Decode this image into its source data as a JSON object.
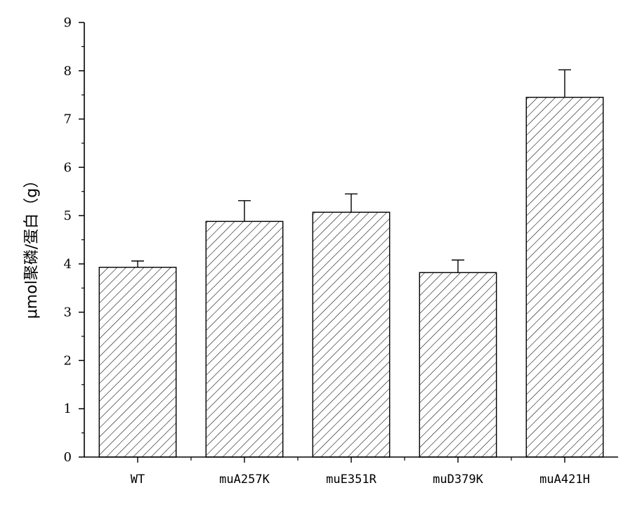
{
  "chart_data": {
    "type": "bar",
    "categories": [
      "WT",
      "muA257K",
      "muE351R",
      "muD379K",
      "muA421H"
    ],
    "values": [
      3.93,
      4.88,
      5.07,
      3.82,
      7.45
    ],
    "errors": [
      0.13,
      0.43,
      0.38,
      0.26,
      0.57
    ],
    "ylabel": "μmol聚磷/蛋白（g）",
    "xlabel": "",
    "title": "",
    "ylim": [
      0,
      9
    ],
    "yticks": [
      0,
      1,
      2,
      3,
      4,
      5,
      6,
      7,
      8,
      9
    ],
    "grid": false,
    "legend": "none",
    "bar_fill": "hatched"
  },
  "colors": {
    "bar_edge": "#000000",
    "hatch": "#000000",
    "background": "#ffffff"
  }
}
